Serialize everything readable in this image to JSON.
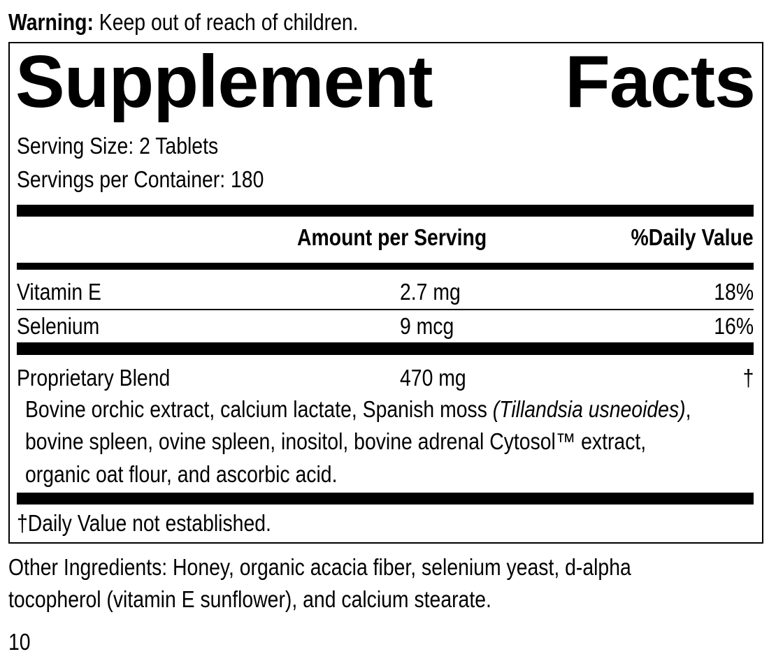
{
  "warning": {
    "label": "Warning:",
    "text": "Keep out of reach of children."
  },
  "title": "Supplement Facts",
  "serving_size": "Serving Size: 2 Tablets",
  "servings_per_container": "Servings per Container: 180",
  "header": {
    "amount": "Amount per Serving",
    "dv": "%Daily Value"
  },
  "nutrients": [
    {
      "name": "Vitamin E",
      "amount": "2.7 mg",
      "dv": "18%"
    },
    {
      "name": "Selenium",
      "amount": "9 mcg",
      "dv": "16%"
    }
  ],
  "blend": {
    "name": "Proprietary Blend",
    "amount": "470 mg",
    "dv": "†",
    "line1_a": "Bovine orchic extract, calcium lactate, Spanish moss ",
    "line1_italic": "(Tillandsia usneoides)",
    "line1_b": ",",
    "line2": "bovine spleen, ovine spleen, inositol, bovine adrenal Cytosol™ extract,",
    "line3": "organic oat flour, and ascorbic acid."
  },
  "footnote": "†Daily Value not established.",
  "other_ingredients": {
    "line1": "Other Ingredients: Honey, organic acacia fiber, selenium yeast, d-alpha",
    "line2": "tocopherol (vitamin E sunflower), and calcium stearate."
  },
  "page_number": "10"
}
